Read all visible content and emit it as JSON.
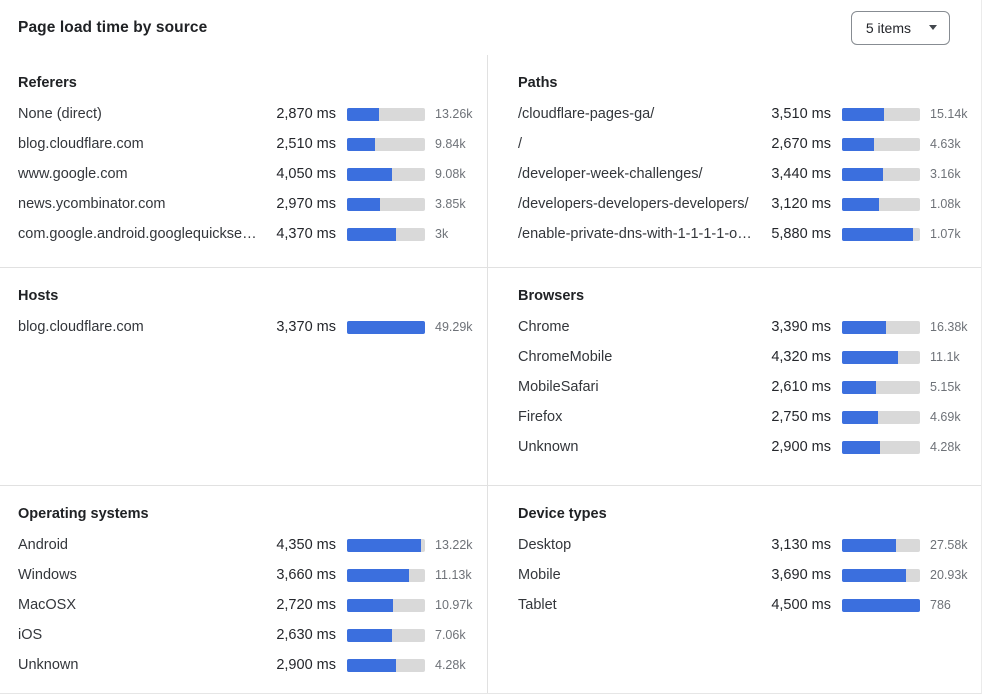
{
  "header": {
    "title": "Page load time by source",
    "dropdown_label": "5 items"
  },
  "colors": {
    "bar_fill": "#3b6fde",
    "bar_track": "#d9d9d9"
  },
  "panels": [
    {
      "title": "Referers",
      "bar_scale": 7000,
      "rows": [
        {
          "label": "None (direct)",
          "ms": 2870,
          "ms_display": "2,870 ms",
          "count": "13.26k"
        },
        {
          "label": "blog.cloudflare.com",
          "ms": 2510,
          "ms_display": "2,510 ms",
          "count": "9.84k"
        },
        {
          "label": "www.google.com",
          "ms": 4050,
          "ms_display": "4,050 ms",
          "count": "9.08k"
        },
        {
          "label": "news.ycombinator.com",
          "ms": 2970,
          "ms_display": "2,970 ms",
          "count": "3.85k"
        },
        {
          "label": "com.google.android.googlequicksearc…",
          "ms": 4370,
          "ms_display": "4,370 ms",
          "count": "3k"
        }
      ]
    },
    {
      "title": "Paths",
      "bar_scale": 6500,
      "rows": [
        {
          "label": "/cloudflare-pages-ga/",
          "ms": 3510,
          "ms_display": "3,510 ms",
          "count": "15.14k"
        },
        {
          "label": "/",
          "ms": 2670,
          "ms_display": "2,670 ms",
          "count": "4.63k"
        },
        {
          "label": "/developer-week-challenges/",
          "ms": 3440,
          "ms_display": "3,440 ms",
          "count": "3.16k"
        },
        {
          "label": "/developers-developers-developers/",
          "ms": 3120,
          "ms_display": "3,120 ms",
          "count": "1.08k"
        },
        {
          "label": "/enable-private-dns-with-1-1-1-1-on-…",
          "ms": 5880,
          "ms_display": "5,880 ms",
          "count": "1.07k"
        }
      ]
    },
    {
      "title": "Hosts",
      "bar_scale": 3370,
      "rows": [
        {
          "label": "blog.cloudflare.com",
          "ms": 3370,
          "ms_display": "3,370 ms",
          "count": "49.29k"
        }
      ]
    },
    {
      "title": "Browsers",
      "bar_scale": 6000,
      "rows": [
        {
          "label": "Chrome",
          "ms": 3390,
          "ms_display": "3,390 ms",
          "count": "16.38k"
        },
        {
          "label": "ChromeMobile",
          "ms": 4320,
          "ms_display": "4,320 ms",
          "count": "11.1k"
        },
        {
          "label": "MobileSafari",
          "ms": 2610,
          "ms_display": "2,610 ms",
          "count": "5.15k"
        },
        {
          "label": "Firefox",
          "ms": 2750,
          "ms_display": "2,750 ms",
          "count": "4.69k"
        },
        {
          "label": "Unknown",
          "ms": 2900,
          "ms_display": "2,900 ms",
          "count": "4.28k"
        }
      ]
    },
    {
      "title": "Operating systems",
      "bar_scale": 4600,
      "rows": [
        {
          "label": "Android",
          "ms": 4350,
          "ms_display": "4,350 ms",
          "count": "13.22k"
        },
        {
          "label": "Windows",
          "ms": 3660,
          "ms_display": "3,660 ms",
          "count": "11.13k"
        },
        {
          "label": "MacOSX",
          "ms": 2720,
          "ms_display": "2,720 ms",
          "count": "10.97k"
        },
        {
          "label": "iOS",
          "ms": 2630,
          "ms_display": "2,630 ms",
          "count": "7.06k"
        },
        {
          "label": "Unknown",
          "ms": 2900,
          "ms_display": "2,900 ms",
          "count": "4.28k"
        }
      ]
    },
    {
      "title": "Device types",
      "bar_scale": 4500,
      "rows": [
        {
          "label": "Desktop",
          "ms": 3130,
          "ms_display": "3,130 ms",
          "count": "27.58k"
        },
        {
          "label": "Mobile",
          "ms": 3690,
          "ms_display": "3,690 ms",
          "count": "20.93k"
        },
        {
          "label": "Tablet",
          "ms": 4500,
          "ms_display": "4,500 ms",
          "count": "786"
        }
      ]
    }
  ]
}
